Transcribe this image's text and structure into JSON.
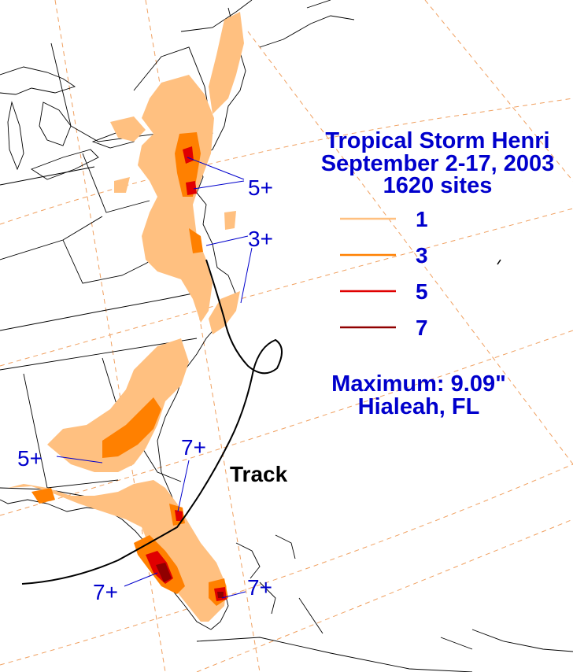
{
  "title": {
    "line1": "Tropical Storm Henri",
    "line2": "September 2-17, 2003",
    "line3": "1620 sites"
  },
  "legend": [
    {
      "label": "1",
      "color": "#ffc080"
    },
    {
      "label": "3",
      "color": "#ff8000"
    },
    {
      "label": "5",
      "color": "#e00000"
    },
    {
      "label": "7",
      "color": "#900000"
    }
  ],
  "maximum": {
    "line1": "Maximum:  9.09\"",
    "line2": "Hialeah, FL"
  },
  "track_label": "Track",
  "callouts": {
    "ne_5plus": "5+",
    "midatl_3plus": "3+",
    "ga_5plus": "5+",
    "fl_east_7plus": "7+",
    "fl_west_7plus": "7+",
    "fl_se_7plus": "7+"
  },
  "colors": {
    "text_blue": "#0000cc",
    "rain_light": "#ffc080",
    "rain_medium": "#ff8000",
    "rain_heavy": "#e00000",
    "rain_extreme": "#900000",
    "grid_dash": "#f0a060",
    "track": "#000000"
  }
}
